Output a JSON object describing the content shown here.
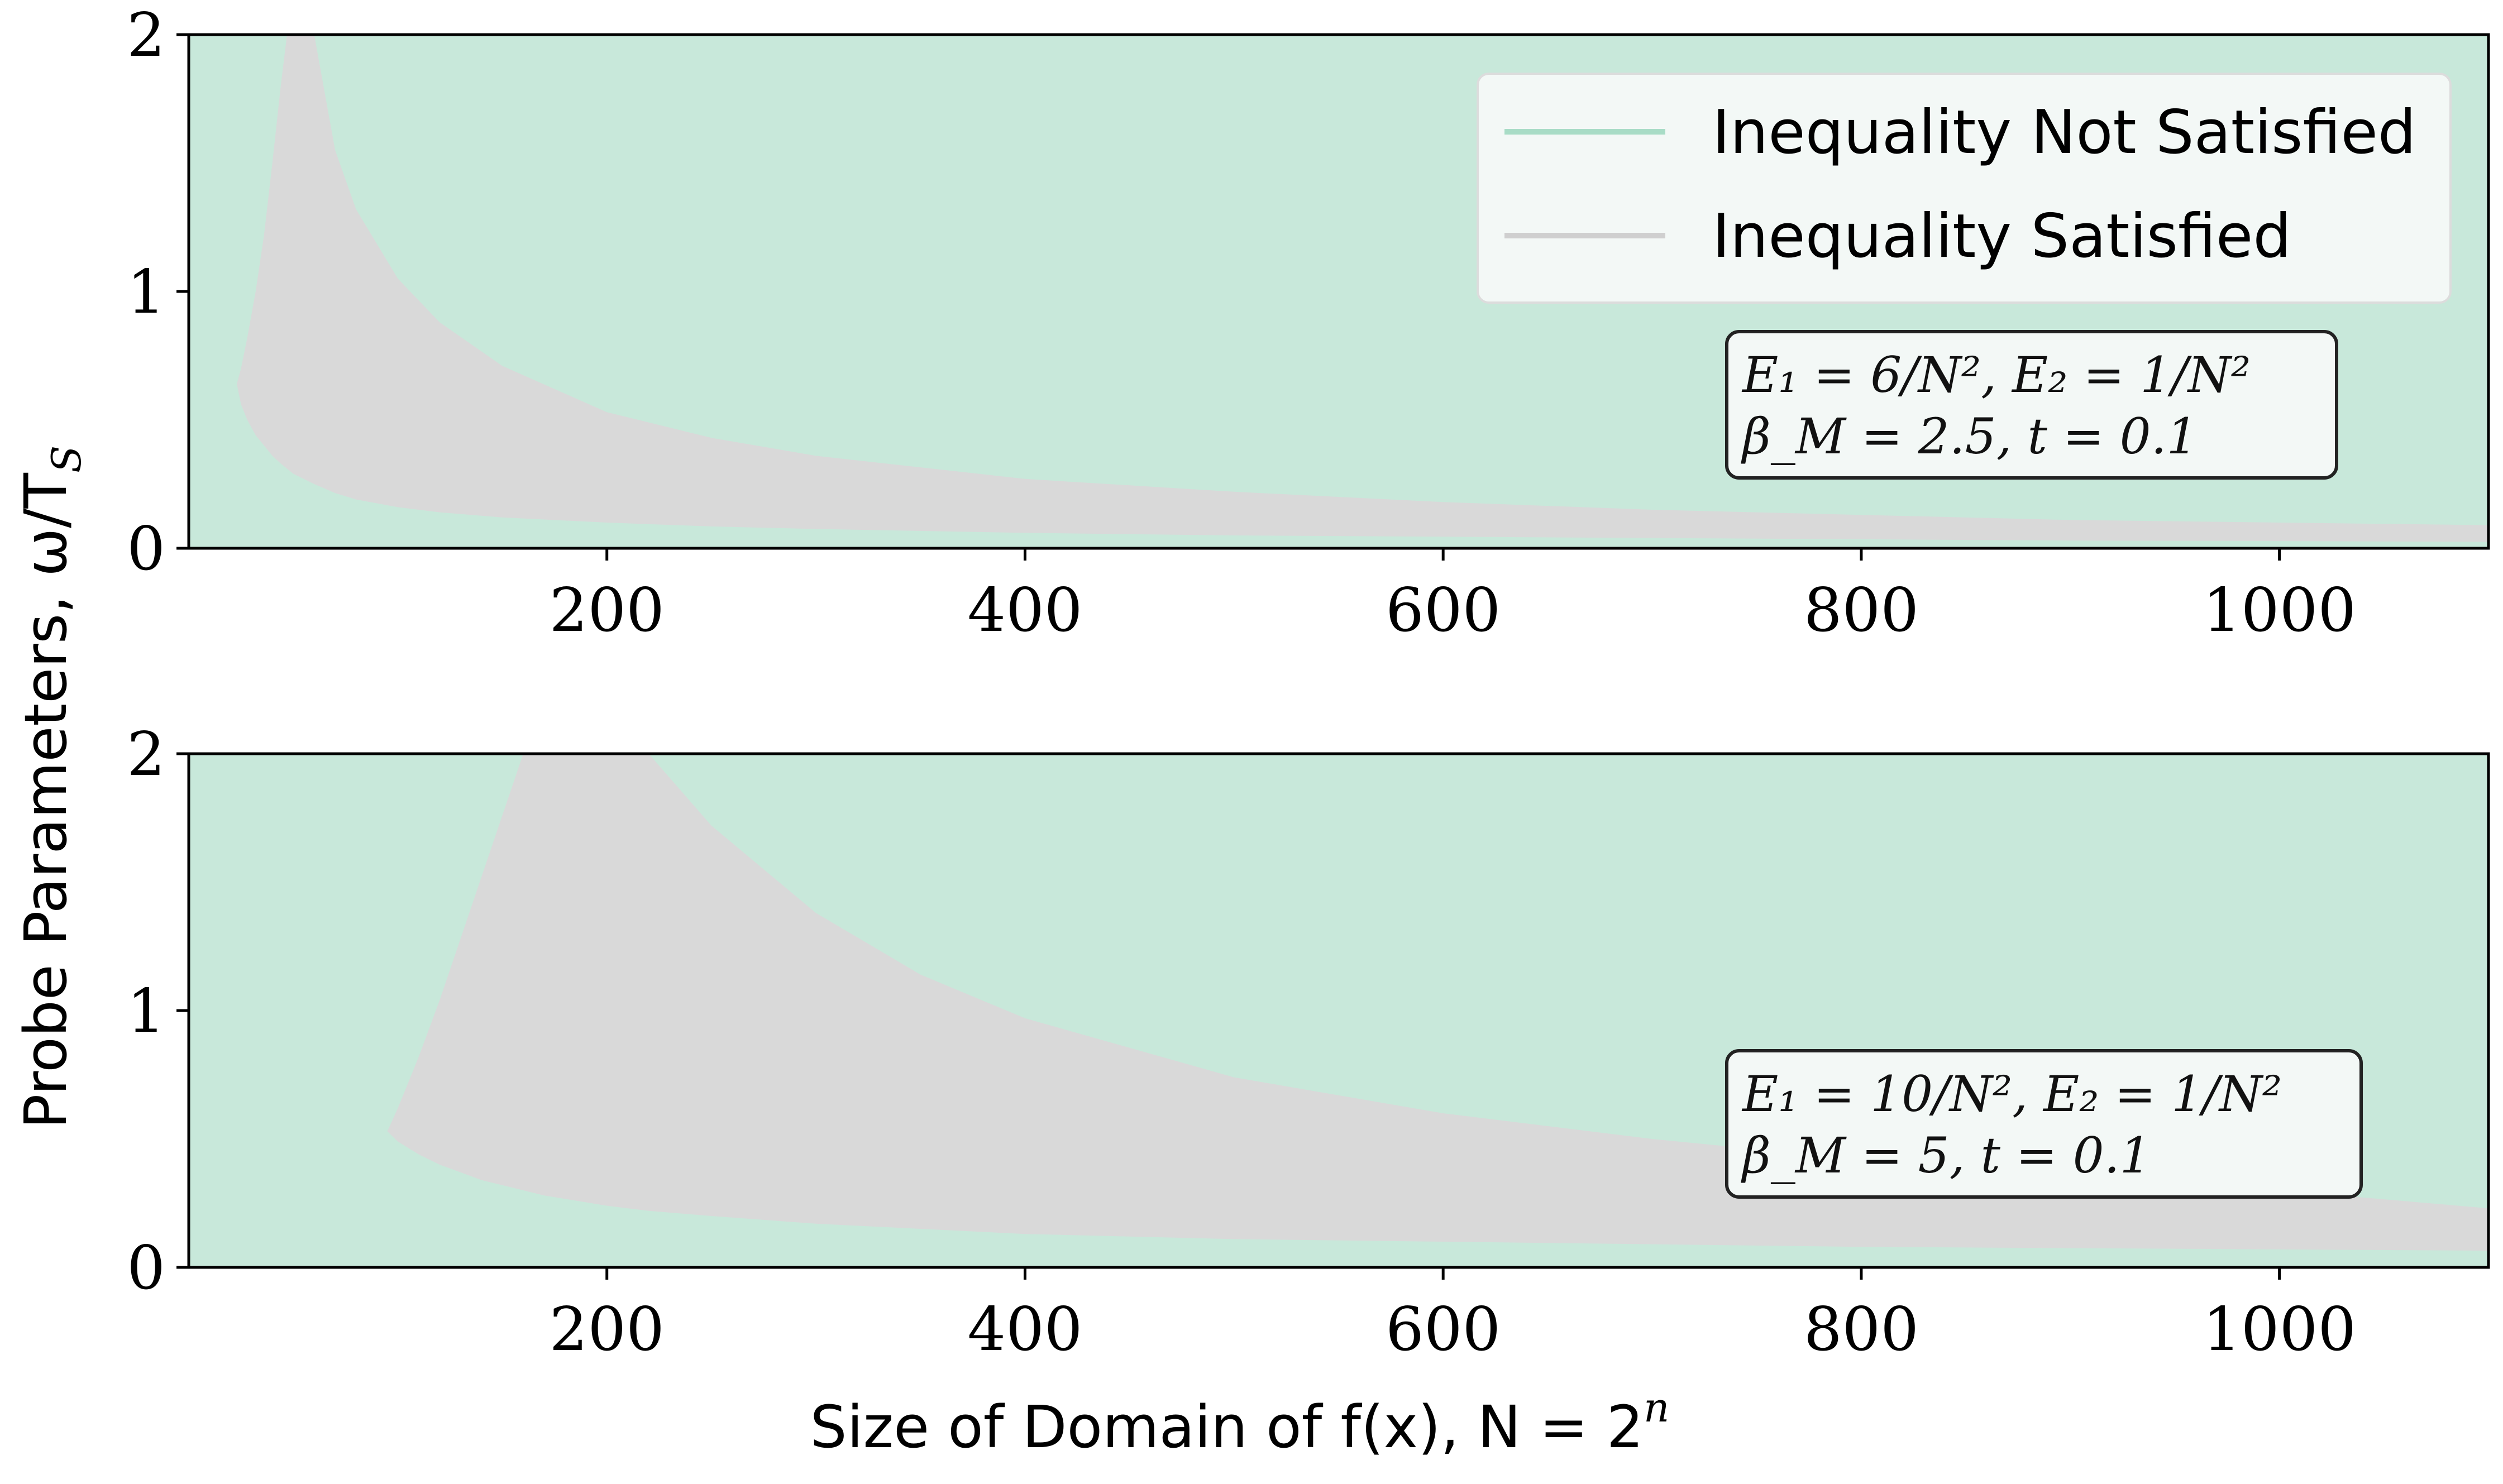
{
  "colors": {
    "not_satisfied": "#c8e8da",
    "satisfied": "#d9d9d9",
    "legend_not_satisfied_line": "#a8dcc6",
    "legend_satisfied_line": "#cfcfcf",
    "legend_bg": "#f3f8f6",
    "anno_bg": "#f3f8f6",
    "axis": "#000000"
  },
  "ylabel": "Probe Parameters, ω/T",
  "ylabel_sub": "S",
  "xlabel": "Size of Domain of f(x), N = 2",
  "xlabel_sup": "n",
  "chart_data": [
    {
      "type": "area",
      "xlim": [
        0,
        1100
      ],
      "ylim": [
        0,
        2
      ],
      "xticks": [
        200,
        400,
        600,
        800,
        1000
      ],
      "yticks": [
        0,
        1,
        2
      ],
      "grid": false,
      "legend_placement": "top-right",
      "legend": [
        "Inequality Not Satisfied",
        "Inequality Satisfied"
      ],
      "annotation": {
        "line1": "E₁ = 6/N², E₂ = 1/N²",
        "line2": "β_M = 2.5, t = 0.1"
      },
      "series": [
        {
          "name": "Inequality Satisfied",
          "x": [
            23,
            25,
            28,
            32,
            36,
            40,
            44,
            47,
            50,
            55,
            60,
            70,
            80,
            100,
            120,
            150,
            200,
            250,
            300,
            400,
            500,
            600,
            700,
            800,
            900,
            1000,
            1100
          ],
          "y_lower": [
            0.64,
            0.56,
            0.5,
            0.44,
            0.4,
            0.36,
            0.33,
            0.31,
            0.29,
            0.27,
            0.25,
            0.215,
            0.19,
            0.16,
            0.14,
            0.12,
            0.1,
            0.085,
            0.075,
            0.06,
            0.05,
            0.045,
            0.04,
            0.035,
            0.03,
            0.028,
            0.025
          ],
          "y_upper": [
            0.64,
            0.7,
            0.82,
            1.0,
            1.22,
            1.5,
            1.8,
            2.0,
            2.0,
            2.0,
            2.0,
            1.55,
            1.32,
            1.05,
            0.88,
            0.71,
            0.53,
            0.43,
            0.36,
            0.27,
            0.22,
            0.18,
            0.15,
            0.13,
            0.11,
            0.1,
            0.09
          ]
        }
      ]
    },
    {
      "type": "area",
      "xlim": [
        0,
        1100
      ],
      "ylim": [
        0,
        2
      ],
      "xticks": [
        200,
        400,
        600,
        800,
        1000
      ],
      "yticks": [
        0,
        1,
        2
      ],
      "grid": false,
      "annotation": {
        "line1": "E₁ = 10/N², E₂ = 1/N²",
        "line2": "β_M = 5, t = 0.1"
      },
      "series": [
        {
          "name": "Inequality Satisfied",
          "x": [
            95,
            100,
            110,
            120,
            130,
            140,
            150,
            160,
            170,
            200,
            220,
            250,
            300,
            350,
            400,
            500,
            600,
            700,
            800,
            900,
            1000,
            1100
          ],
          "y_lower": [
            0.53,
            0.49,
            0.44,
            0.4,
            0.37,
            0.34,
            0.32,
            0.3,
            0.28,
            0.24,
            0.22,
            0.2,
            0.17,
            0.15,
            0.13,
            0.11,
            0.1,
            0.09,
            0.08,
            0.075,
            0.07,
            0.065
          ],
          "y_upper": [
            0.53,
            0.62,
            0.82,
            1.04,
            1.28,
            1.52,
            1.76,
            2.0,
            2.0,
            2.0,
            2.0,
            1.72,
            1.38,
            1.14,
            0.97,
            0.74,
            0.6,
            0.5,
            0.42,
            0.36,
            0.3,
            0.23
          ]
        }
      ]
    }
  ]
}
